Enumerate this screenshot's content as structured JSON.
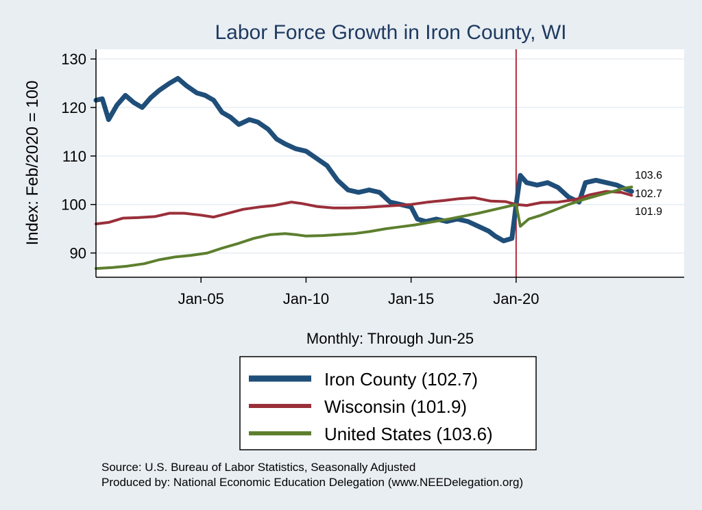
{
  "chart_data": {
    "type": "line",
    "title": "Labor Force Growth in Iron  County, WI",
    "xlabel": "Monthly: Through Jun-25",
    "ylabel": "Index: Feb/2020 = 100",
    "xlim": [
      2000.0,
      2028.0
    ],
    "ylim": [
      85,
      132
    ],
    "y_ticks": [
      90,
      100,
      110,
      120,
      130
    ],
    "x_ticks": [
      {
        "x": 2005.0,
        "label": "Jan-05"
      },
      {
        "x": 2010.0,
        "label": "Jan-10"
      },
      {
        "x": 2015.0,
        "label": "Jan-15"
      },
      {
        "x": 2020.0,
        "label": "Jan-20"
      }
    ],
    "reference_line_x": 2020.0,
    "reference_line_color": "#b5283a",
    "end_labels": [
      "103.6",
      "102.7",
      "101.9"
    ],
    "series": [
      {
        "name": "Iron  County (102.7)",
        "color": "#1f4e79",
        "points": [
          [
            2000.0,
            121.5
          ],
          [
            2000.3,
            121.8
          ],
          [
            2000.6,
            117.5
          ],
          [
            2001.0,
            120.5
          ],
          [
            2001.4,
            122.5
          ],
          [
            2001.8,
            121.0
          ],
          [
            2002.2,
            120.0
          ],
          [
            2002.6,
            122.0
          ],
          [
            2003.0,
            123.5
          ],
          [
            2003.5,
            125.0
          ],
          [
            2003.9,
            126.0
          ],
          [
            2004.3,
            124.5
          ],
          [
            2004.8,
            123.0
          ],
          [
            2005.2,
            122.5
          ],
          [
            2005.6,
            121.5
          ],
          [
            2006.0,
            119.0
          ],
          [
            2006.4,
            118.0
          ],
          [
            2006.8,
            116.5
          ],
          [
            2007.3,
            117.5
          ],
          [
            2007.7,
            117.0
          ],
          [
            2008.2,
            115.5
          ],
          [
            2008.6,
            113.5
          ],
          [
            2009.0,
            112.5
          ],
          [
            2009.5,
            111.5
          ],
          [
            2010.0,
            111.0
          ],
          [
            2010.5,
            109.5
          ],
          [
            2011.0,
            108.0
          ],
          [
            2011.5,
            105.0
          ],
          [
            2012.0,
            103.0
          ],
          [
            2012.5,
            102.5
          ],
          [
            2013.0,
            103.0
          ],
          [
            2013.5,
            102.5
          ],
          [
            2014.0,
            100.5
          ],
          [
            2014.5,
            100.0
          ],
          [
            2015.0,
            99.5
          ],
          [
            2015.3,
            97.0
          ],
          [
            2015.7,
            96.5
          ],
          [
            2016.2,
            97.0
          ],
          [
            2016.7,
            96.5
          ],
          [
            2017.2,
            97.0
          ],
          [
            2017.7,
            96.5
          ],
          [
            2018.2,
            95.5
          ],
          [
            2018.7,
            94.5
          ],
          [
            2019.0,
            93.5
          ],
          [
            2019.4,
            92.5
          ],
          [
            2019.8,
            93.0
          ],
          [
            2020.0,
            100.0
          ],
          [
            2020.2,
            106.0
          ],
          [
            2020.5,
            104.5
          ],
          [
            2021.0,
            104.0
          ],
          [
            2021.5,
            104.5
          ],
          [
            2022.0,
            103.5
          ],
          [
            2022.5,
            101.5
          ],
          [
            2023.0,
            100.5
          ],
          [
            2023.3,
            104.5
          ],
          [
            2023.8,
            105.0
          ],
          [
            2024.3,
            104.5
          ],
          [
            2024.8,
            104.0
          ],
          [
            2025.2,
            103.2
          ],
          [
            2025.5,
            102.7
          ]
        ]
      },
      {
        "name": "Wisconsin (101.9)",
        "color": "#9a2f3a",
        "points": [
          [
            2000.0,
            96.0
          ],
          [
            2000.6,
            96.3
          ],
          [
            2001.3,
            97.2
          ],
          [
            2002.0,
            97.3
          ],
          [
            2002.8,
            97.5
          ],
          [
            2003.5,
            98.2
          ],
          [
            2004.2,
            98.2
          ],
          [
            2005.0,
            97.8
          ],
          [
            2005.6,
            97.4
          ],
          [
            2006.3,
            98.2
          ],
          [
            2007.0,
            99.0
          ],
          [
            2007.8,
            99.5
          ],
          [
            2008.5,
            99.8
          ],
          [
            2009.3,
            100.5
          ],
          [
            2009.8,
            100.2
          ],
          [
            2010.5,
            99.6
          ],
          [
            2011.3,
            99.3
          ],
          [
            2012.0,
            99.3
          ],
          [
            2012.8,
            99.4
          ],
          [
            2013.5,
            99.6
          ],
          [
            2014.3,
            99.8
          ],
          [
            2015.0,
            100.0
          ],
          [
            2015.8,
            100.5
          ],
          [
            2016.5,
            100.8
          ],
          [
            2017.3,
            101.2
          ],
          [
            2018.0,
            101.4
          ],
          [
            2018.8,
            100.7
          ],
          [
            2019.5,
            100.6
          ],
          [
            2020.0,
            100.0
          ],
          [
            2020.5,
            99.8
          ],
          [
            2021.2,
            100.4
          ],
          [
            2022.0,
            100.5
          ],
          [
            2022.8,
            101.0
          ],
          [
            2023.5,
            102.0
          ],
          [
            2024.3,
            102.7
          ],
          [
            2025.0,
            102.5
          ],
          [
            2025.5,
            101.9
          ]
        ]
      },
      {
        "name": "United States (103.6)",
        "color": "#5d7f2e",
        "points": [
          [
            2000.0,
            86.8
          ],
          [
            2000.8,
            87.0
          ],
          [
            2001.5,
            87.3
          ],
          [
            2002.3,
            87.8
          ],
          [
            2003.0,
            88.6
          ],
          [
            2003.8,
            89.2
          ],
          [
            2004.5,
            89.5
          ],
          [
            2005.3,
            90.0
          ],
          [
            2006.0,
            91.0
          ],
          [
            2006.8,
            92.0
          ],
          [
            2007.5,
            93.0
          ],
          [
            2008.3,
            93.8
          ],
          [
            2009.0,
            94.0
          ],
          [
            2009.5,
            93.8
          ],
          [
            2010.0,
            93.5
          ],
          [
            2010.8,
            93.6
          ],
          [
            2011.5,
            93.8
          ],
          [
            2012.3,
            94.0
          ],
          [
            2013.0,
            94.4
          ],
          [
            2013.8,
            95.0
          ],
          [
            2014.5,
            95.4
          ],
          [
            2015.2,
            95.8
          ],
          [
            2016.0,
            96.4
          ],
          [
            2016.8,
            97.0
          ],
          [
            2017.5,
            97.6
          ],
          [
            2018.2,
            98.2
          ],
          [
            2019.0,
            99.0
          ],
          [
            2019.6,
            99.6
          ],
          [
            2020.0,
            100.0
          ],
          [
            2020.2,
            95.5
          ],
          [
            2020.6,
            97.0
          ],
          [
            2021.2,
            97.8
          ],
          [
            2021.8,
            98.8
          ],
          [
            2022.5,
            100.0
          ],
          [
            2023.2,
            101.0
          ],
          [
            2024.0,
            102.0
          ],
          [
            2024.7,
            102.8
          ],
          [
            2025.2,
            103.4
          ],
          [
            2025.5,
            103.6
          ]
        ]
      }
    ],
    "legend_position": "bottom",
    "source_lines": [
      "Source: U.S. Bureau of Labor Statistics, Seasonally Adjusted",
      "Produced by: National Economic Education Delegation (www.NEEDelegation.org)"
    ]
  }
}
